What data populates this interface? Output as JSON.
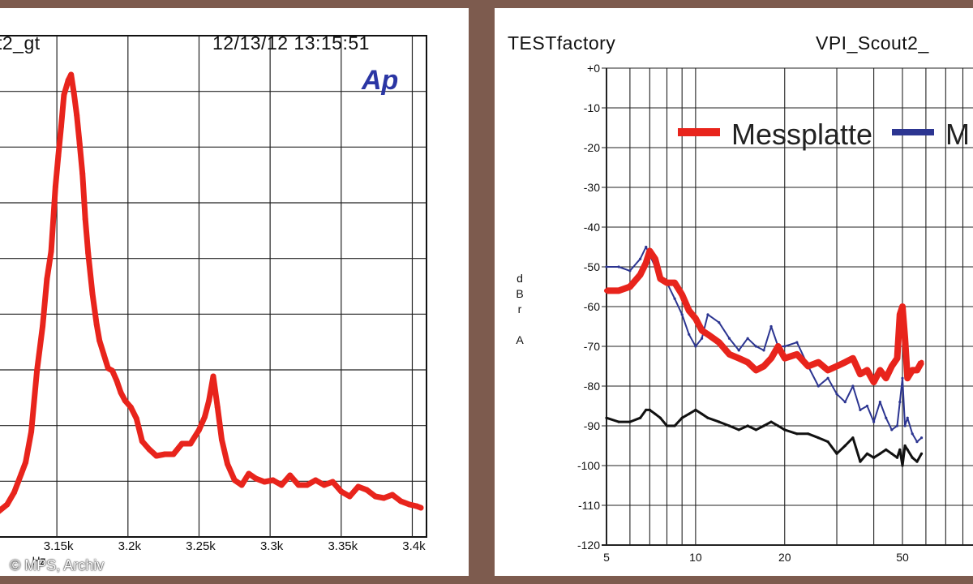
{
  "left": {
    "title_partial": "t2_gt",
    "datetime": "12/13/12 13:15:51",
    "logo": "Ap",
    "x_unit": "Hz",
    "x_ticks": [
      "3.15k",
      "3.2k",
      "3.25k",
      "3.3k",
      "3.35k",
      "3.4k"
    ]
  },
  "right": {
    "title_left": "TESTfactory",
    "title_right_partial": "VPI_Scout2_",
    "y_label": [
      "d",
      "B",
      "r",
      "",
      "A"
    ],
    "x_ticks": [
      "5",
      "10",
      "20",
      "50"
    ],
    "y_ticks": [
      "+0",
      "-10",
      "-20",
      "-30",
      "-40",
      "-50",
      "-60",
      "-70",
      "-80",
      "-90",
      "-100",
      "-110",
      "-120"
    ]
  },
  "copyright": "© MPS, Archiv",
  "chart_data": [
    {
      "type": "line",
      "title": "",
      "xlabel": "Hz",
      "ylabel": "",
      "xlim": [
        3110,
        3410
      ],
      "x_scale": "linear",
      "grid": true,
      "series": [
        {
          "color": "#e8241c",
          "x": [
            3108,
            3115,
            3120,
            3125,
            3128,
            3132,
            3136,
            3140,
            3143,
            3146,
            3149,
            3151,
            3153,
            3155,
            3158,
            3160,
            3162,
            3164,
            3166,
            3168,
            3170,
            3172,
            3175,
            3178,
            3180,
            3183,
            3186,
            3189,
            3192,
            3195,
            3198,
            3202,
            3206,
            3210,
            3215,
            3220,
            3226,
            3232,
            3238,
            3244,
            3250,
            3254,
            3257,
            3260,
            3263,
            3266,
            3270,
            3275,
            3280,
            3285,
            3290,
            3296,
            3302,
            3308,
            3314,
            3320,
            3326,
            3332,
            3338,
            3344,
            3350,
            3356,
            3362,
            3368,
            3374,
            3380,
            3386,
            3392,
            3398,
            3403,
            3406
          ],
          "values": [
            30,
            40,
            55,
            78,
            92,
            130,
            205,
            260,
            318,
            352,
            432,
            470,
            506,
            545,
            563,
            570,
            547,
            520,
            485,
            448,
            392,
            350,
            300,
            262,
            242,
            225,
            208,
            205,
            193,
            178,
            168,
            160,
            146,
            118,
            108,
            100,
            102,
            102,
            115,
            115,
            132,
            148,
            168,
            198,
            160,
            120,
            90,
            70,
            64,
            78,
            72,
            68,
            70,
            64,
            76,
            64,
            64,
            70,
            64,
            68,
            56,
            50,
            62,
            58,
            50,
            48,
            52,
            44,
            40,
            38,
            36
          ]
        }
      ]
    },
    {
      "type": "line",
      "title": "",
      "xlabel": "",
      "ylabel": "dBr A",
      "xlim": [
        5,
        80
      ],
      "x_scale": "log",
      "ylim": [
        -120,
        0
      ],
      "grid": true,
      "legend_position": "top",
      "series": [
        {
          "name": "Messplatte",
          "color": "#e8241c",
          "x": [
            5,
            5.5,
            6,
            6.5,
            6.8,
            7,
            7.3,
            7.6,
            8,
            8.5,
            9,
            9.5,
            10,
            10.5,
            11,
            12,
            13,
            14,
            15,
            16,
            17,
            18,
            19,
            20,
            22,
            24,
            26,
            28,
            30,
            32,
            34,
            36,
            38,
            40,
            42,
            44,
            46,
            48,
            49,
            50,
            51,
            52,
            54,
            56,
            58
          ],
          "values": [
            -56,
            -56,
            -55,
            -52,
            -49,
            -46,
            -48,
            -53,
            -54,
            -54,
            -57,
            -61,
            -63,
            -66,
            -67,
            -69,
            -72,
            -73,
            -74,
            -76,
            -75,
            -73,
            -70,
            -73,
            -72,
            -75,
            -74,
            -76,
            -75,
            -74,
            -73,
            -77,
            -76,
            -79,
            -76,
            -78,
            -75,
            -73,
            -62,
            -60,
            -68,
            -78,
            -76,
            -76,
            -74
          ]
        },
        {
          "name": "M",
          "color": "#2c3591",
          "x": [
            5,
            5.5,
            6,
            6.5,
            6.8,
            7,
            7.3,
            7.6,
            8,
            8.5,
            9,
            9.5,
            10,
            10.5,
            11,
            12,
            13,
            14,
            15,
            16,
            17,
            18,
            19,
            20,
            22,
            24,
            26,
            28,
            30,
            32,
            34,
            36,
            38,
            40,
            42,
            44,
            46,
            48,
            49,
            50,
            51,
            52,
            54,
            56,
            58
          ],
          "values": [
            -50,
            -50,
            -51,
            -48,
            -45,
            -47,
            -50,
            -53,
            -54,
            -58,
            -62,
            -67,
            -70,
            -68,
            -62,
            -64,
            -68,
            -71,
            -68,
            -70,
            -71,
            -65,
            -70,
            -70,
            -69,
            -75,
            -80,
            -78,
            -82,
            -84,
            -80,
            -86,
            -85,
            -89,
            -84,
            -88,
            -91,
            -90,
            -84,
            -78,
            -90,
            -88,
            -92,
            -94,
            -93
          ]
        },
        {
          "color": "#111111",
          "x": [
            5,
            5.5,
            6,
            6.5,
            6.8,
            7,
            7.3,
            7.6,
            8,
            8.5,
            9,
            9.5,
            10,
            10.5,
            11,
            12,
            13,
            14,
            15,
            16,
            17,
            18,
            19,
            20,
            22,
            24,
            26,
            28,
            30,
            32,
            34,
            36,
            38,
            40,
            42,
            44,
            46,
            48,
            49,
            50,
            51,
            52,
            54,
            56,
            58
          ],
          "values": [
            -88,
            -89,
            -89,
            -88,
            -86,
            -86,
            -87,
            -88,
            -90,
            -90,
            -88,
            -87,
            -86,
            -87,
            -88,
            -89,
            -90,
            -91,
            -90,
            -91,
            -90,
            -89,
            -90,
            -91,
            -92,
            -92,
            -93,
            -94,
            -97,
            -95,
            -93,
            -99,
            -97,
            -98,
            -97,
            -96,
            -97,
            -98,
            -96,
            -100,
            -95,
            -96,
            -98,
            -99,
            -97
          ]
        }
      ]
    }
  ]
}
